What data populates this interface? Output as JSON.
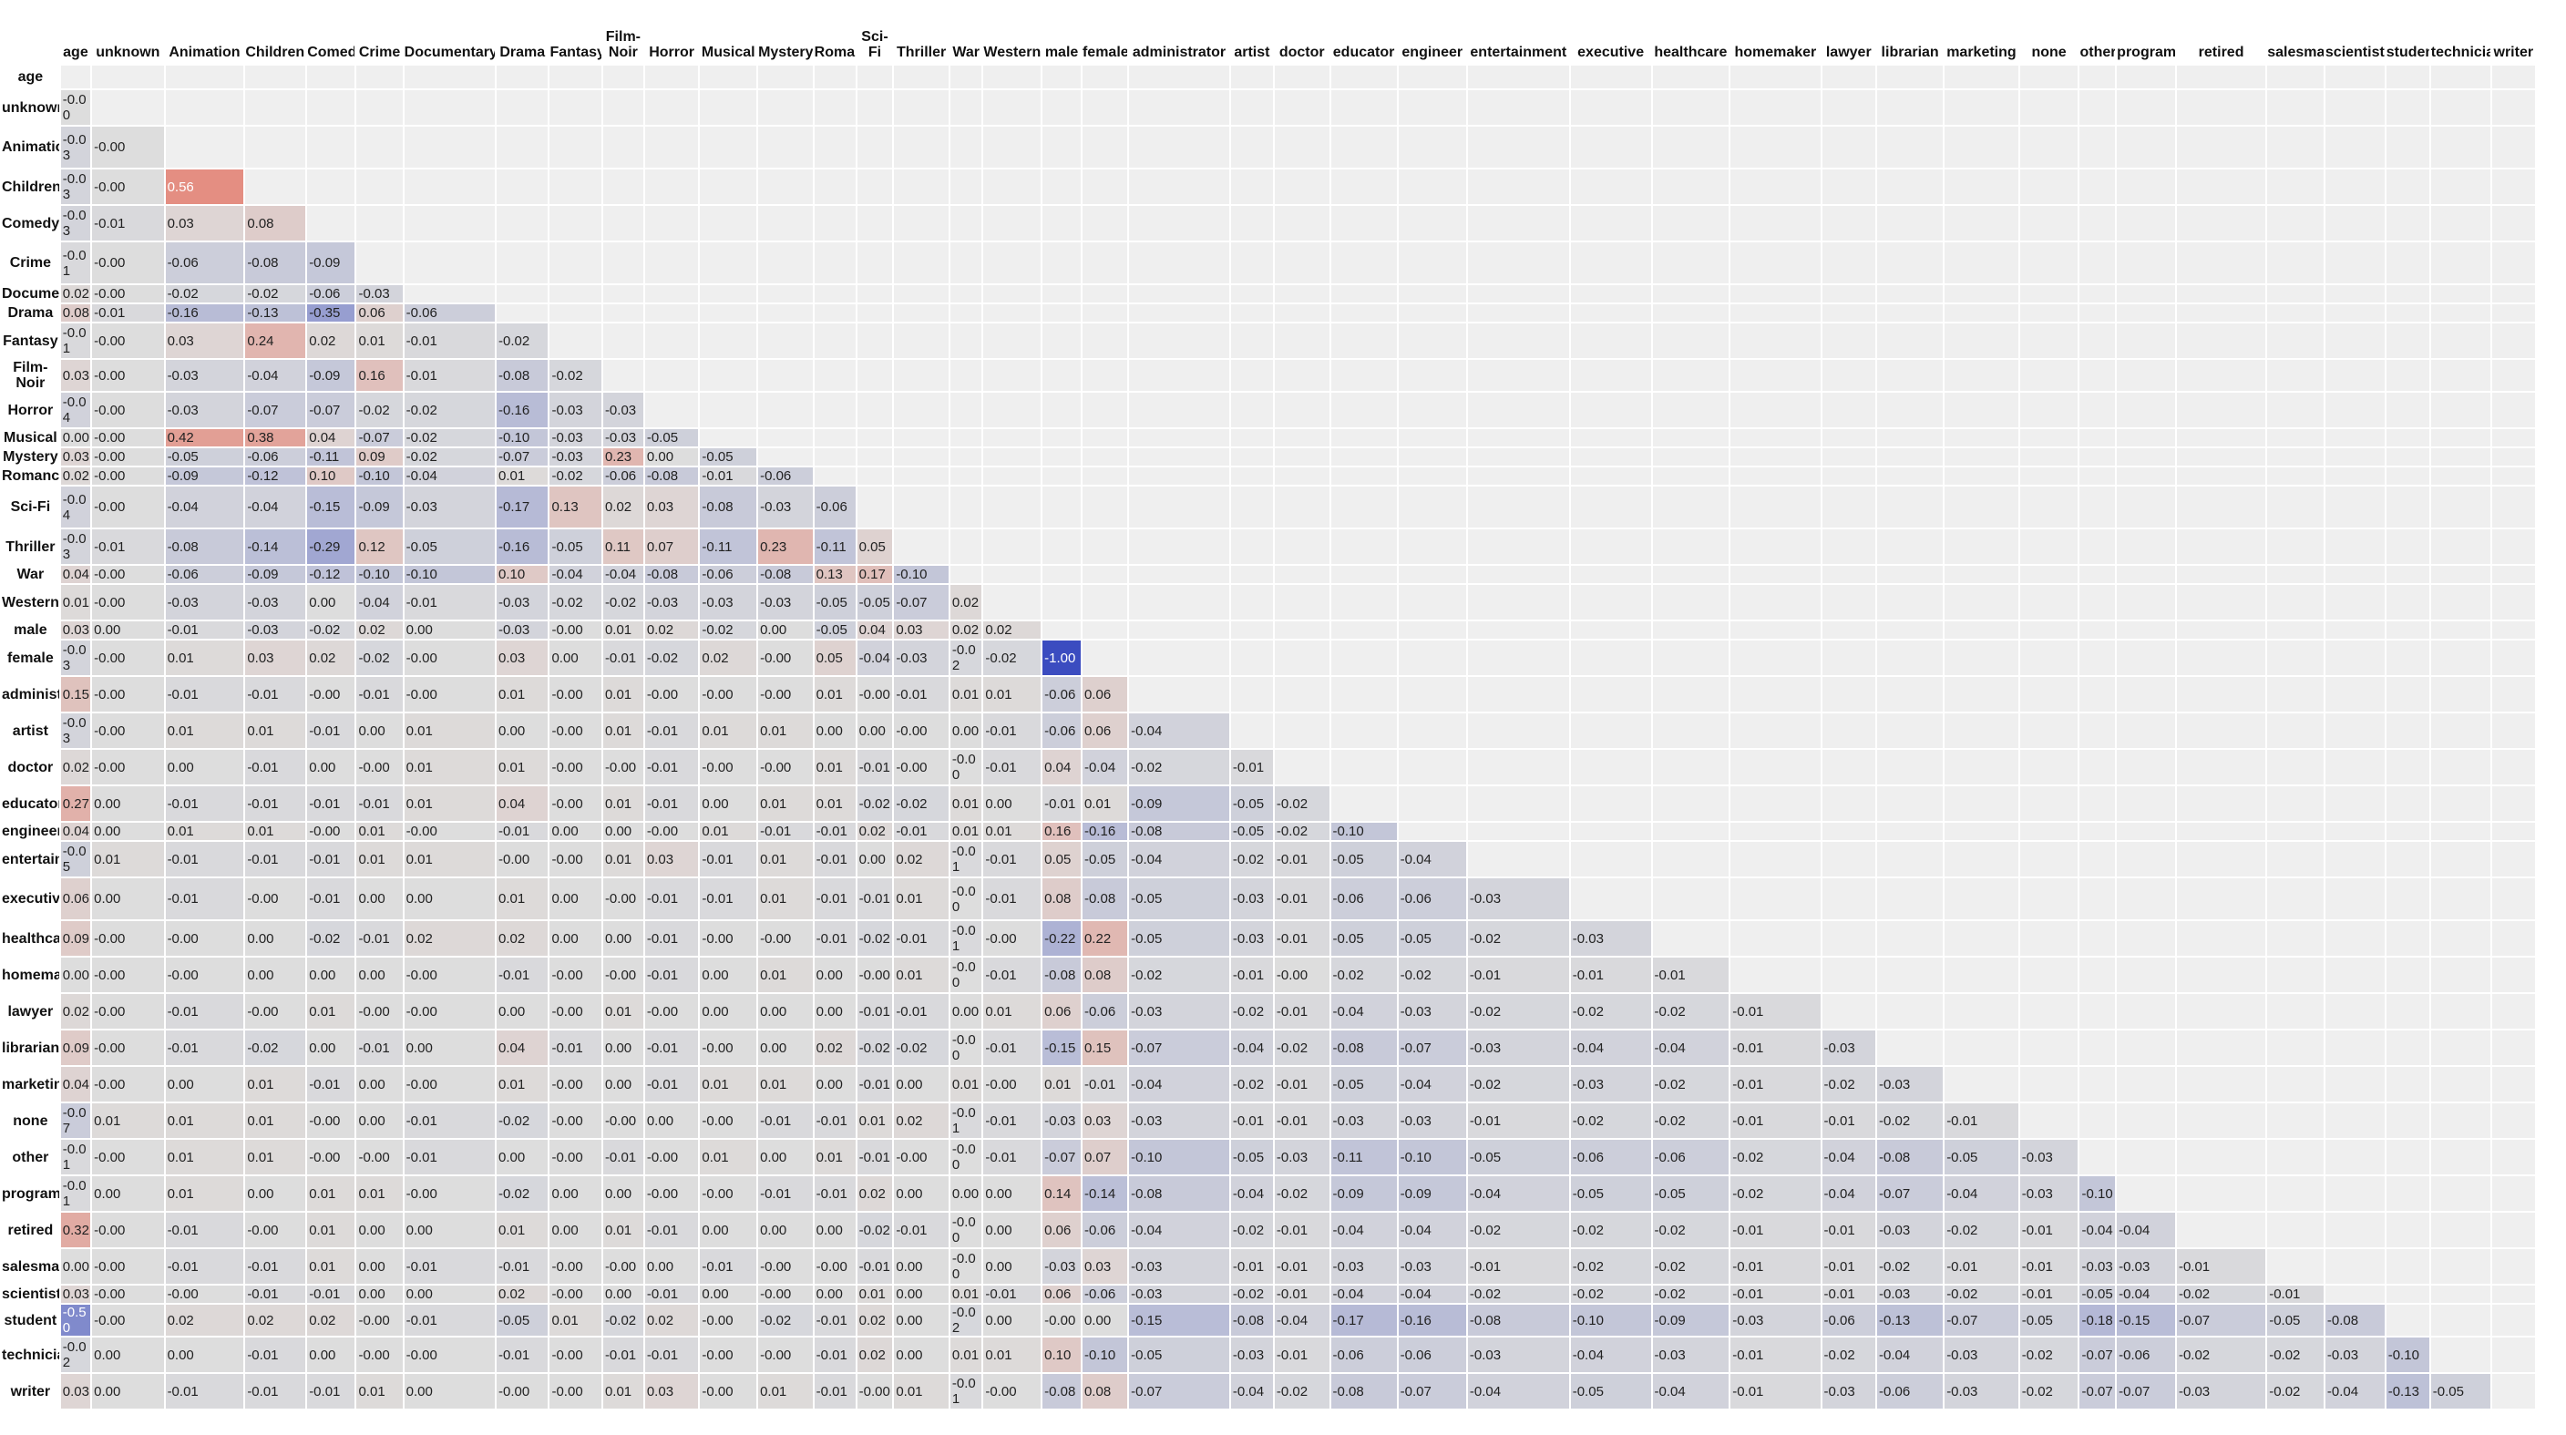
{
  "chart_data": {
    "type": "heatmap",
    "title": "",
    "labels": [
      "age",
      "unknown",
      "Animation",
      "Children's",
      "Comedy",
      "Crime",
      "Documentary",
      "Drama",
      "Fantasy",
      "Film-Noir",
      "Horror",
      "Musical",
      "Mystery",
      "Romance",
      "Sci-Fi",
      "Thriller",
      "War",
      "Western",
      "male",
      "female",
      "administrator",
      "artist",
      "doctor",
      "educator",
      "engineer",
      "entertainment",
      "executive",
      "healthcare",
      "homemaker",
      "lawyer",
      "librarian",
      "marketing",
      "none",
      "other",
      "programmer",
      "retired",
      "salesman",
      "scientist",
      "student",
      "technician",
      "writer"
    ],
    "vlim": [
      -1.0,
      1.0
    ],
    "colors": {
      "negative": "#3b4cc0",
      "neutral": "#dddddd",
      "positive": "#e8604c",
      "empty": "#efefef"
    },
    "grid": false,
    "matrix": [
      [],
      [
        "-0.00"
      ],
      [
        "-0.03",
        "-0.00"
      ],
      [
        "-0.03",
        "-0.00",
        "0.56"
      ],
      [
        "-0.03",
        "-0.01",
        "0.03",
        "0.08"
      ],
      [
        "-0.01",
        "-0.00",
        "-0.06",
        "-0.08",
        "-0.09"
      ],
      [
        "0.02",
        "-0.00",
        "-0.02",
        "-0.02",
        "-0.06",
        "-0.03"
      ],
      [
        "0.08",
        "-0.01",
        "-0.16",
        "-0.13",
        "-0.35",
        "0.06",
        "-0.06"
      ],
      [
        "-0.01",
        "-0.00",
        "0.03",
        "0.24",
        "0.02",
        "0.01",
        "-0.01",
        "-0.02"
      ],
      [
        "0.03",
        "-0.00",
        "-0.03",
        "-0.04",
        "-0.09",
        "0.16",
        "-0.01",
        "-0.08",
        "-0.02"
      ],
      [
        "-0.04",
        "-0.00",
        "-0.03",
        "-0.07",
        "-0.07",
        "-0.02",
        "-0.02",
        "-0.16",
        "-0.03",
        "-0.03"
      ],
      [
        "0.00",
        "-0.00",
        "0.42",
        "0.38",
        "0.04",
        "-0.07",
        "-0.02",
        "-0.10",
        "-0.03",
        "-0.03",
        "-0.05"
      ],
      [
        "0.03",
        "-0.00",
        "-0.05",
        "-0.06",
        "-0.11",
        "0.09",
        "-0.02",
        "-0.07",
        "-0.03",
        "0.23",
        "0.00",
        "-0.05"
      ],
      [
        "0.02",
        "-0.00",
        "-0.09",
        "-0.12",
        "0.10",
        "-0.10",
        "-0.04",
        "0.01",
        "-0.02",
        "-0.06",
        "-0.08",
        "-0.01",
        "-0.06"
      ],
      [
        "-0.04",
        "-0.00",
        "-0.04",
        "-0.04",
        "-0.15",
        "-0.09",
        "-0.03",
        "-0.17",
        "0.13",
        "0.02",
        "0.03",
        "-0.08",
        "-0.03",
        "-0.06"
      ],
      [
        "-0.03",
        "-0.01",
        "-0.08",
        "-0.14",
        "-0.29",
        "0.12",
        "-0.05",
        "-0.16",
        "-0.05",
        "0.11",
        "0.07",
        "-0.11",
        "0.23",
        "-0.11",
        "0.05"
      ],
      [
        "0.04",
        "-0.00",
        "-0.06",
        "-0.09",
        "-0.12",
        "-0.10",
        "-0.10",
        "0.10",
        "-0.04",
        "-0.04",
        "-0.08",
        "-0.06",
        "-0.08",
        "0.13",
        "0.17",
        "-0.10"
      ],
      [
        "0.01",
        "-0.00",
        "-0.03",
        "-0.03",
        "0.00",
        "-0.04",
        "-0.01",
        "-0.03",
        "-0.02",
        "-0.02",
        "-0.03",
        "-0.03",
        "-0.03",
        "-0.05",
        "-0.05",
        "-0.07",
        "0.02"
      ],
      [
        "0.03",
        "0.00",
        "-0.01",
        "-0.03",
        "-0.02",
        "0.02",
        "0.00",
        "-0.03",
        "-0.00",
        "0.01",
        "0.02",
        "-0.02",
        "0.00",
        "-0.05",
        "0.04",
        "0.03",
        "0.02",
        "0.02"
      ],
      [
        "-0.03",
        "-0.00",
        "0.01",
        "0.03",
        "0.02",
        "-0.02",
        "-0.00",
        "0.03",
        "0.00",
        "-0.01",
        "-0.02",
        "0.02",
        "-0.00",
        "0.05",
        "-0.04",
        "-0.03",
        "-0.02",
        "-0.02",
        "-1.00"
      ],
      [
        "0.15",
        "-0.00",
        "-0.01",
        "-0.01",
        "-0.00",
        "-0.01",
        "-0.00",
        "0.01",
        "-0.00",
        "0.01",
        "-0.00",
        "-0.00",
        "-0.00",
        "0.01",
        "-0.00",
        "-0.01",
        "0.01",
        "0.01",
        "-0.06",
        "0.06"
      ],
      [
        "-0.03",
        "-0.00",
        "0.01",
        "0.01",
        "-0.01",
        "0.00",
        "0.01",
        "0.00",
        "-0.00",
        "0.01",
        "-0.01",
        "0.01",
        "0.01",
        "0.00",
        "0.00",
        "-0.00",
        "0.00",
        "-0.01",
        "-0.06",
        "0.06",
        "-0.04"
      ],
      [
        "0.02",
        "-0.00",
        "0.00",
        "-0.01",
        "0.00",
        "-0.00",
        "0.01",
        "0.01",
        "-0.00",
        "-0.00",
        "-0.01",
        "-0.00",
        "-0.00",
        "0.01",
        "-0.01",
        "-0.00",
        "-0.00",
        "-0.01",
        "0.04",
        "-0.04",
        "-0.02",
        "-0.01"
      ],
      [
        "0.27",
        "0.00",
        "-0.01",
        "-0.01",
        "-0.01",
        "-0.01",
        "0.01",
        "0.04",
        "-0.00",
        "0.01",
        "-0.01",
        "0.00",
        "0.01",
        "0.01",
        "-0.02",
        "-0.02",
        "0.01",
        "0.00",
        "-0.01",
        "0.01",
        "-0.09",
        "-0.05",
        "-0.02"
      ],
      [
        "0.04",
        "0.00",
        "0.01",
        "0.01",
        "-0.00",
        "0.01",
        "-0.00",
        "-0.01",
        "0.00",
        "0.00",
        "-0.00",
        "0.01",
        "-0.01",
        "-0.01",
        "0.02",
        "-0.01",
        "0.01",
        "0.01",
        "0.16",
        "-0.16",
        "-0.08",
        "-0.05",
        "-0.02",
        "-0.10"
      ],
      [
        "-0.05",
        "0.01",
        "-0.01",
        "-0.01",
        "-0.01",
        "0.01",
        "0.01",
        "-0.00",
        "-0.00",
        "0.01",
        "0.03",
        "-0.01",
        "0.01",
        "-0.01",
        "0.00",
        "0.02",
        "-0.01",
        "-0.01",
        "0.05",
        "-0.05",
        "-0.04",
        "-0.02",
        "-0.01",
        "-0.05",
        "-0.04"
      ],
      [
        "0.06",
        "0.00",
        "-0.01",
        "-0.00",
        "-0.01",
        "0.00",
        "0.00",
        "0.01",
        "0.00",
        "-0.00",
        "-0.01",
        "-0.01",
        "0.01",
        "-0.01",
        "-0.01",
        "0.01",
        "-0.00",
        "-0.01",
        "0.08",
        "-0.08",
        "-0.05",
        "-0.03",
        "-0.01",
        "-0.06",
        "-0.06",
        "-0.03"
      ],
      [
        "0.09",
        "-0.00",
        "-0.00",
        "0.00",
        "-0.02",
        "-0.01",
        "0.02",
        "0.02",
        "0.00",
        "0.00",
        "-0.01",
        "-0.00",
        "-0.00",
        "-0.01",
        "-0.02",
        "-0.01",
        "-0.01",
        "-0.00",
        "-0.22",
        "0.22",
        "-0.05",
        "-0.03",
        "-0.01",
        "-0.05",
        "-0.05",
        "-0.02",
        "-0.03"
      ],
      [
        "0.00",
        "-0.00",
        "-0.00",
        "0.00",
        "0.00",
        "0.00",
        "-0.00",
        "-0.01",
        "-0.00",
        "-0.00",
        "-0.01",
        "0.00",
        "0.01",
        "0.00",
        "-0.00",
        "0.01",
        "-0.00",
        "-0.01",
        "-0.08",
        "0.08",
        "-0.02",
        "-0.01",
        "-0.00",
        "-0.02",
        "-0.02",
        "-0.01",
        "-0.01",
        "-0.01"
      ],
      [
        "0.02",
        "-0.00",
        "-0.01",
        "-0.00",
        "0.01",
        "-0.00",
        "-0.00",
        "0.00",
        "-0.00",
        "0.01",
        "-0.00",
        "0.00",
        "0.00",
        "0.00",
        "-0.01",
        "-0.01",
        "0.00",
        "0.01",
        "0.06",
        "-0.06",
        "-0.03",
        "-0.02",
        "-0.01",
        "-0.04",
        "-0.03",
        "-0.02",
        "-0.02",
        "-0.02",
        "-0.01"
      ],
      [
        "0.09",
        "-0.00",
        "-0.01",
        "-0.02",
        "0.00",
        "-0.01",
        "0.00",
        "0.04",
        "-0.01",
        "0.00",
        "-0.01",
        "-0.00",
        "0.00",
        "0.02",
        "-0.02",
        "-0.02",
        "-0.00",
        "-0.01",
        "-0.15",
        "0.15",
        "-0.07",
        "-0.04",
        "-0.02",
        "-0.08",
        "-0.07",
        "-0.03",
        "-0.04",
        "-0.04",
        "-0.01",
        "-0.03"
      ],
      [
        "0.04",
        "-0.00",
        "0.00",
        "0.01",
        "-0.01",
        "0.00",
        "-0.00",
        "0.01",
        "-0.00",
        "0.00",
        "-0.01",
        "0.01",
        "0.01",
        "0.00",
        "-0.01",
        "0.00",
        "0.01",
        "-0.00",
        "0.01",
        "-0.01",
        "-0.04",
        "-0.02",
        "-0.01",
        "-0.05",
        "-0.04",
        "-0.02",
        "-0.03",
        "-0.02",
        "-0.01",
        "-0.02",
        "-0.03"
      ],
      [
        "-0.07",
        "0.01",
        "0.01",
        "0.01",
        "-0.00",
        "0.00",
        "-0.01",
        "-0.02",
        "-0.00",
        "-0.00",
        "0.00",
        "-0.00",
        "-0.01",
        "-0.01",
        "0.01",
        "0.02",
        "-0.01",
        "-0.01",
        "-0.03",
        "0.03",
        "-0.03",
        "-0.01",
        "-0.01",
        "-0.03",
        "-0.03",
        "-0.01",
        "-0.02",
        "-0.02",
        "-0.01",
        "-0.01",
        "-0.02",
        "-0.01"
      ],
      [
        "-0.01",
        "-0.00",
        "0.01",
        "0.01",
        "-0.00",
        "-0.00",
        "-0.01",
        "0.00",
        "-0.00",
        "-0.01",
        "-0.00",
        "0.01",
        "0.00",
        "0.01",
        "-0.01",
        "-0.00",
        "-0.00",
        "-0.01",
        "-0.07",
        "0.07",
        "-0.10",
        "-0.05",
        "-0.03",
        "-0.11",
        "-0.10",
        "-0.05",
        "-0.06",
        "-0.06",
        "-0.02",
        "-0.04",
        "-0.08",
        "-0.05",
        "-0.03"
      ],
      [
        "-0.01",
        "0.00",
        "0.01",
        "0.00",
        "0.01",
        "0.01",
        "-0.00",
        "-0.02",
        "0.00",
        "0.00",
        "-0.00",
        "-0.00",
        "-0.01",
        "-0.01",
        "0.02",
        "0.00",
        "0.00",
        "0.00",
        "0.14",
        "-0.14",
        "-0.08",
        "-0.04",
        "-0.02",
        "-0.09",
        "-0.09",
        "-0.04",
        "-0.05",
        "-0.05",
        "-0.02",
        "-0.04",
        "-0.07",
        "-0.04",
        "-0.03",
        "-0.10"
      ],
      [
        "0.32",
        "-0.00",
        "-0.01",
        "-0.00",
        "0.01",
        "0.00",
        "0.00",
        "0.01",
        "0.00",
        "0.01",
        "-0.01",
        "0.00",
        "0.00",
        "0.00",
        "-0.02",
        "-0.01",
        "-0.00",
        "0.00",
        "0.06",
        "-0.06",
        "-0.04",
        "-0.02",
        "-0.01",
        "-0.04",
        "-0.04",
        "-0.02",
        "-0.02",
        "-0.02",
        "-0.01",
        "-0.01",
        "-0.03",
        "-0.02",
        "-0.01",
        "-0.04",
        "-0.04"
      ],
      [
        "0.00",
        "-0.00",
        "-0.01",
        "-0.01",
        "0.01",
        "0.00",
        "-0.01",
        "-0.01",
        "-0.00",
        "-0.00",
        "0.00",
        "-0.01",
        "-0.00",
        "-0.00",
        "-0.01",
        "0.00",
        "-0.00",
        "0.00",
        "-0.03",
        "0.03",
        "-0.03",
        "-0.01",
        "-0.01",
        "-0.03",
        "-0.03",
        "-0.01",
        "-0.02",
        "-0.02",
        "-0.01",
        "-0.01",
        "-0.02",
        "-0.01",
        "-0.01",
        "-0.03",
        "-0.03",
        "-0.01"
      ],
      [
        "0.03",
        "-0.00",
        "-0.00",
        "-0.01",
        "-0.01",
        "0.00",
        "0.00",
        "0.02",
        "-0.00",
        "0.00",
        "-0.01",
        "0.00",
        "-0.00",
        "0.00",
        "0.01",
        "0.00",
        "0.01",
        "-0.01",
        "0.06",
        "-0.06",
        "-0.03",
        "-0.02",
        "-0.01",
        "-0.04",
        "-0.04",
        "-0.02",
        "-0.02",
        "-0.02",
        "-0.01",
        "-0.01",
        "-0.03",
        "-0.02",
        "-0.01",
        "-0.05",
        "-0.04",
        "-0.02",
        "-0.01"
      ],
      [
        "-0.50",
        "-0.00",
        "0.02",
        "0.02",
        "0.02",
        "-0.00",
        "-0.01",
        "-0.05",
        "0.01",
        "-0.02",
        "0.02",
        "-0.00",
        "-0.02",
        "-0.01",
        "0.02",
        "0.00",
        "-0.02",
        "0.00",
        "-0.00",
        "0.00",
        "-0.15",
        "-0.08",
        "-0.04",
        "-0.17",
        "-0.16",
        "-0.08",
        "-0.10",
        "-0.09",
        "-0.03",
        "-0.06",
        "-0.13",
        "-0.07",
        "-0.05",
        "-0.18",
        "-0.15",
        "-0.07",
        "-0.05",
        "-0.08"
      ],
      [
        "-0.02",
        "0.00",
        "0.00",
        "-0.01",
        "0.00",
        "-0.00",
        "-0.00",
        "-0.01",
        "-0.00",
        "-0.01",
        "-0.01",
        "-0.00",
        "-0.00",
        "-0.01",
        "0.02",
        "0.00",
        "0.01",
        "0.01",
        "0.10",
        "-0.10",
        "-0.05",
        "-0.03",
        "-0.01",
        "-0.06",
        "-0.06",
        "-0.03",
        "-0.04",
        "-0.03",
        "-0.01",
        "-0.02",
        "-0.04",
        "-0.03",
        "-0.02",
        "-0.07",
        "-0.06",
        "-0.02",
        "-0.02",
        "-0.03",
        "-0.10"
      ],
      [
        "0.03",
        "0.00",
        "-0.01",
        "-0.01",
        "-0.01",
        "0.01",
        "0.00",
        "-0.00",
        "-0.00",
        "0.01",
        "0.03",
        "-0.00",
        "0.01",
        "-0.01",
        "-0.00",
        "0.01",
        "-0.01",
        "-0.00",
        "-0.08",
        "0.08",
        "-0.07",
        "-0.04",
        "-0.02",
        "-0.08",
        "-0.07",
        "-0.04",
        "-0.05",
        "-0.04",
        "-0.01",
        "-0.03",
        "-0.06",
        "-0.03",
        "-0.02",
        "-0.07",
        "-0.07",
        "-0.03",
        "-0.02",
        "-0.04",
        "-0.13",
        "-0.05"
      ]
    ]
  }
}
